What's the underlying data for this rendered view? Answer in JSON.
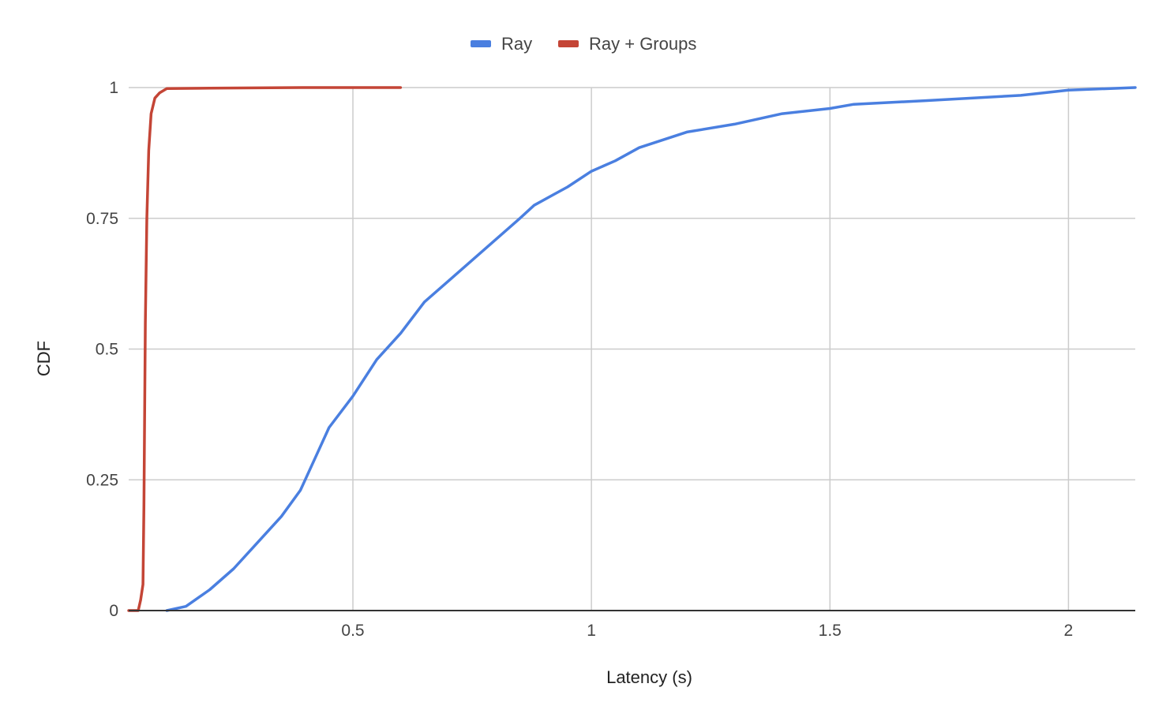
{
  "chart_data": {
    "type": "line",
    "title": "",
    "xlabel": "Latency (s)",
    "ylabel": "CDF",
    "xlim": [
      0.03,
      2.14
    ],
    "ylim": [
      0,
      1
    ],
    "x_ticks": [
      0.5,
      1,
      1.5,
      2
    ],
    "x_tick_labels": [
      "0.5",
      "1",
      "1.5",
      "2"
    ],
    "y_ticks": [
      0,
      0.25,
      0.5,
      0.75,
      1
    ],
    "y_tick_labels": [
      "0",
      "0.25",
      "0.5",
      "0.75",
      "1"
    ],
    "grid": true,
    "legend_position": "top-center",
    "series": [
      {
        "name": "Ray",
        "color": "#4a7fe0",
        "points": [
          [
            0.11,
            0.0
          ],
          [
            0.15,
            0.008
          ],
          [
            0.2,
            0.04
          ],
          [
            0.25,
            0.08
          ],
          [
            0.3,
            0.13
          ],
          [
            0.35,
            0.18
          ],
          [
            0.39,
            0.23
          ],
          [
            0.42,
            0.29
          ],
          [
            0.45,
            0.35
          ],
          [
            0.5,
            0.41
          ],
          [
            0.55,
            0.48
          ],
          [
            0.6,
            0.53
          ],
          [
            0.65,
            0.59
          ],
          [
            0.7,
            0.63
          ],
          [
            0.75,
            0.67
          ],
          [
            0.8,
            0.71
          ],
          [
            0.85,
            0.75
          ],
          [
            0.88,
            0.775
          ],
          [
            0.92,
            0.795
          ],
          [
            0.95,
            0.81
          ],
          [
            1.0,
            0.84
          ],
          [
            1.05,
            0.86
          ],
          [
            1.1,
            0.885
          ],
          [
            1.15,
            0.9
          ],
          [
            1.2,
            0.915
          ],
          [
            1.3,
            0.93
          ],
          [
            1.4,
            0.95
          ],
          [
            1.5,
            0.96
          ],
          [
            1.55,
            0.968
          ],
          [
            1.7,
            0.975
          ],
          [
            1.9,
            0.985
          ],
          [
            2.0,
            0.995
          ],
          [
            2.14,
            1.0
          ]
        ]
      },
      {
        "name": "Ray + Groups",
        "color": "#c44536",
        "points": [
          [
            0.03,
            0.0
          ],
          [
            0.05,
            0.0
          ],
          [
            0.055,
            0.02
          ],
          [
            0.06,
            0.05
          ],
          [
            0.062,
            0.2
          ],
          [
            0.065,
            0.55
          ],
          [
            0.068,
            0.75
          ],
          [
            0.072,
            0.88
          ],
          [
            0.077,
            0.95
          ],
          [
            0.085,
            0.98
          ],
          [
            0.095,
            0.99
          ],
          [
            0.11,
            0.998
          ],
          [
            0.2,
            0.999
          ],
          [
            0.4,
            1.0
          ],
          [
            0.6,
            1.0
          ]
        ]
      }
    ]
  }
}
